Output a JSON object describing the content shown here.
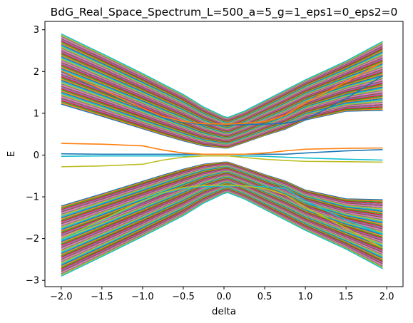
{
  "chart_data": {
    "type": "line",
    "title": "BdG_Real_Space_Spectrum_L=500_a=5_g=1_eps1=0_eps2=0",
    "xlabel": "delta",
    "ylabel": "E",
    "xlim": [
      -2.2,
      2.2
    ],
    "ylim": [
      -3.15,
      3.2
    ],
    "xticks": [
      -2.0,
      -1.5,
      -1.0,
      -0.5,
      0.0,
      0.5,
      1.0,
      1.5,
      2.0
    ],
    "xtick_labels": [
      "−2.0",
      "−1.5",
      "−1.0",
      "−0.5",
      "0.0",
      "0.5",
      "1.0",
      "1.5",
      "2.0"
    ],
    "yticks": [
      -3,
      -2,
      -1,
      0,
      1,
      2,
      3
    ],
    "ytick_labels": [
      "−3",
      "−2",
      "−1",
      "0",
      "1",
      "2",
      "3"
    ],
    "grid": false,
    "legend": "none",
    "palette": [
      "#1f77b4",
      "#ff7f0e",
      "#2ca02c",
      "#d62728",
      "#9467bd",
      "#8c564b",
      "#e377c2",
      "#7f7f7f",
      "#bcbd22",
      "#17becf"
    ],
    "x": [
      -2.0,
      -1.5,
      -1.0,
      -0.75,
      -0.5,
      -0.25,
      0.0,
      0.05,
      0.25,
      0.5,
      0.75,
      1.0,
      1.5,
      1.95
    ],
    "bulk_bands": {
      "count_per_band": 60,
      "upper_inner_edge": [
        1.22,
        0.93,
        0.63,
        0.48,
        0.34,
        0.22,
        0.17,
        0.17,
        0.3,
        0.47,
        0.62,
        0.84,
        1.05,
        1.07
      ],
      "upper_outer_edge": [
        2.9,
        2.43,
        1.95,
        1.7,
        1.45,
        1.15,
        0.92,
        0.9,
        1.05,
        1.3,
        1.55,
        1.8,
        2.25,
        2.72
      ],
      "lower_inner_edge": [
        -1.22,
        -0.93,
        -0.63,
        -0.48,
        -0.34,
        -0.22,
        -0.17,
        -0.17,
        -0.3,
        -0.47,
        -0.62,
        -0.84,
        -1.05,
        -1.07
      ],
      "lower_outer_edge": [
        -2.9,
        -2.43,
        -1.95,
        -1.7,
        -1.45,
        -1.15,
        -0.92,
        -0.9,
        -1.05,
        -1.3,
        -1.55,
        -1.8,
        -2.25,
        -2.72
      ]
    },
    "series": [
      {
        "color": "#1f77b4",
        "values": [
          0.03,
          0.02,
          0.02,
          0.02,
          0.02,
          0.02,
          0.02,
          0.02,
          0.02,
          0.02,
          0.02,
          0.05,
          0.1,
          0.13
        ]
      },
      {
        "color": "#ff7f0e",
        "values": [
          0.28,
          0.26,
          0.22,
          0.12,
          0.05,
          0.02,
          0.02,
          0.02,
          0.02,
          0.05,
          0.1,
          0.14,
          0.16,
          0.17
        ]
      },
      {
        "color": "#17becf",
        "values": [
          -0.03,
          -0.02,
          -0.02,
          -0.02,
          -0.02,
          -0.02,
          -0.02,
          -0.02,
          -0.02,
          -0.03,
          -0.05,
          -0.07,
          -0.1,
          -0.12
        ]
      },
      {
        "color": "#bcbd22",
        "values": [
          -0.28,
          -0.26,
          -0.22,
          -0.12,
          -0.05,
          -0.02,
          -0.02,
          -0.02,
          -0.06,
          -0.1,
          -0.13,
          -0.15,
          -0.16,
          -0.17
        ]
      },
      {
        "color": "#1f77b4",
        "values": [
          2.0,
          1.55,
          1.1,
          0.9,
          0.78,
          0.73,
          0.72,
          0.72,
          0.73,
          0.74,
          0.76,
          0.85,
          1.35,
          1.9
        ]
      },
      {
        "color": "#ff7f0e",
        "values": [
          2.02,
          1.57,
          1.12,
          0.92,
          0.8,
          0.75,
          0.74,
          0.74,
          0.76,
          0.8,
          0.95,
          1.25,
          1.75,
          2.22
        ]
      },
      {
        "color": "#17becf",
        "values": [
          -2.02,
          -1.57,
          -1.12,
          -0.92,
          -0.8,
          -0.75,
          -0.74,
          -0.74,
          -0.74,
          -0.76,
          -0.8,
          -1.1,
          -1.55,
          -1.9
        ]
      },
      {
        "color": "#bcbd22",
        "values": [
          -2.0,
          -1.55,
          -1.1,
          -0.9,
          -0.78,
          -0.73,
          -0.72,
          -0.72,
          -0.74,
          -0.8,
          -0.95,
          -1.25,
          -1.75,
          -2.22
        ]
      }
    ]
  }
}
